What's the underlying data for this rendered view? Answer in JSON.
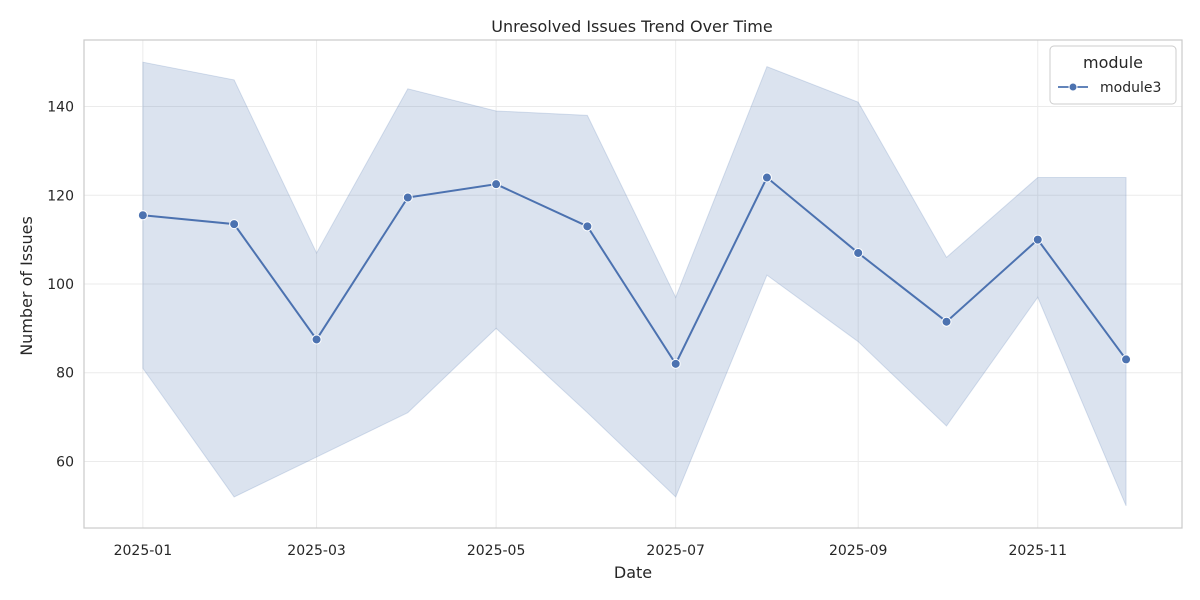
{
  "chart_data": {
    "type": "line",
    "title": "Unresolved Issues Trend Over Time",
    "xlabel": "Date",
    "ylabel": "Number of Issues",
    "x": [
      "2025-01-01",
      "2025-02-01",
      "2025-03-01",
      "2025-04-01",
      "2025-05-01",
      "2025-06-01",
      "2025-07-01",
      "2025-08-01",
      "2025-09-01",
      "2025-10-01",
      "2025-11-01",
      "2025-12-01"
    ],
    "x_ticks": [
      "2025-01",
      "2025-03",
      "2025-05",
      "2025-07",
      "2025-09",
      "2025-11"
    ],
    "y_ticks": [
      60,
      80,
      100,
      120,
      140
    ],
    "xlim": [
      "2024-12-12",
      "2025-12-20"
    ],
    "ylim": [
      45,
      155
    ],
    "grid": true,
    "legend": {
      "title": "module",
      "placement": "top-right"
    },
    "series": [
      {
        "name": "module3",
        "color": "#4c72b0",
        "values": [
          115.5,
          113.5,
          87.5,
          119.5,
          122.5,
          113,
          82,
          124,
          107,
          91.5,
          110,
          83
        ],
        "band_upper": [
          150,
          146,
          107,
          144,
          139,
          138,
          97,
          149,
          141,
          106,
          124,
          124
        ],
        "band_lower": [
          81,
          52,
          61,
          71,
          90,
          71,
          52,
          102,
          87,
          68,
          97,
          50
        ]
      }
    ]
  }
}
